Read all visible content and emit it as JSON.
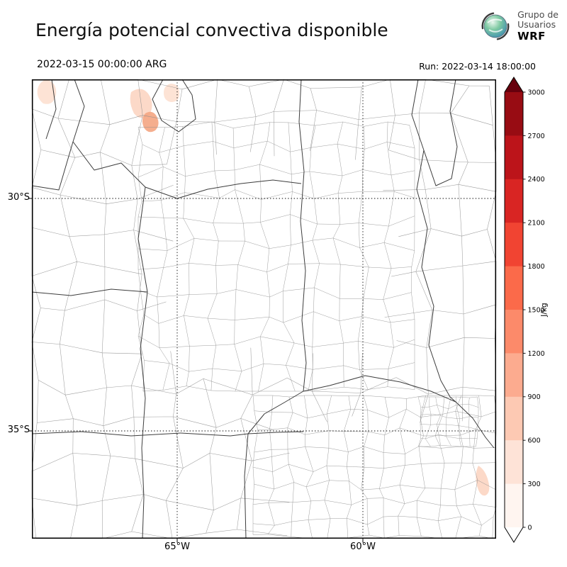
{
  "header": {
    "title": "Energía potencial convectiva disponible",
    "logo": {
      "line1": "Grupo de",
      "line2": "Usuarios",
      "line3": "WRF"
    },
    "valid_time": "2022-03-15 00:00:00 ARG",
    "run_label": "Run: 2022-03-14 18:00:00"
  },
  "map": {
    "lat_labels": [
      "30°S",
      "35°S"
    ],
    "lon_labels": [
      "65°W",
      "60°W"
    ]
  },
  "colorbar": {
    "unit": "J/kg",
    "tick_labels": [
      "3000",
      "2700",
      "2400",
      "2100",
      "1800",
      "1500",
      "1200",
      "900",
      "600",
      "300",
      "0"
    ],
    "segment_colors_top_to_bottom": [
      "#980c13",
      "#bc141a",
      "#d92523",
      "#f14432",
      "#fb6a4a",
      "#fc8a6a",
      "#fcab8f",
      "#fdc9b3",
      "#fee3d7",
      "#fff5f0"
    ],
    "over_arrow_color": "#67000d",
    "under_arrow_color": "#ffffff"
  },
  "chart_data": {
    "type": "heatmap",
    "title": "Energía potencial convectiva disponible",
    "unit": "J/kg",
    "colorbar_ticks": [
      0,
      300,
      600,
      900,
      1200,
      1500,
      1800,
      2100,
      2400,
      2700,
      3000
    ],
    "field_summary": "CAPE near 0 J/kg over almost the entire mapped domain; small pale patches of roughly 300–900 J/kg in the far northwest and a thin sliver along the southeast coast"
  }
}
